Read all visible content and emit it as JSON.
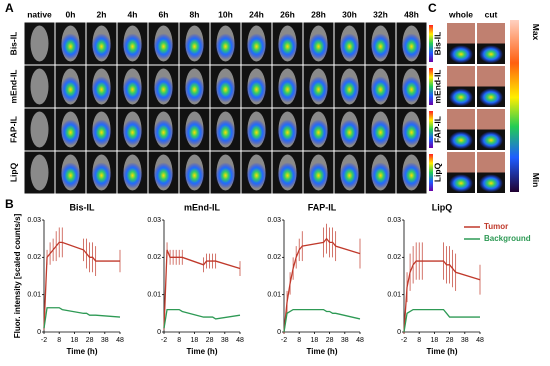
{
  "panel_labels": [
    "A",
    "B",
    "C"
  ],
  "panel_a": {
    "columns": [
      "native",
      "0h",
      "2h",
      "4h",
      "6h",
      "8h",
      "10h",
      "24h",
      "26h",
      "28h",
      "30h",
      "32h",
      "48h"
    ],
    "rows": [
      "Bis-IL",
      "mEnd-IL",
      "FAP-IL",
      "LipQ"
    ]
  },
  "panel_c": {
    "columns": [
      "whole",
      "cut"
    ],
    "rows": [
      "Bis-IL",
      "mEnd-IL",
      "FAP-IL",
      "LipQ"
    ],
    "scale_max": "Max",
    "scale_min": "Min"
  },
  "chart_data": [
    {
      "type": "line",
      "title": "Bis-IL",
      "x_label": "Time (h)",
      "y_label": "Fluor. intensity [scaled counts/s]",
      "x": [
        -2,
        0,
        2,
        4,
        6,
        8,
        10,
        24,
        26,
        28,
        30,
        32,
        48
      ],
      "xlim": [
        -2,
        48
      ],
      "xticks": [
        -2,
        8,
        18,
        28,
        38,
        48
      ],
      "ylim": [
        0,
        0.03
      ],
      "yticks": [
        0,
        0.01,
        0.02,
        0.03
      ],
      "series": [
        {
          "color": "#c0392b",
          "values": [
            0.001,
            0.02,
            0.021,
            0.022,
            0.023,
            0.024,
            0.024,
            0.022,
            0.021,
            0.02,
            0.02,
            0.019,
            0.019
          ],
          "errors": [
            0.0005,
            0.002,
            0.003,
            0.003,
            0.004,
            0.004,
            0.004,
            0.003,
            0.004,
            0.004,
            0.004,
            0.004,
            0.003
          ]
        },
        {
          "color": "#2e9a55",
          "values": [
            0.001,
            0.0065,
            0.0065,
            0.0065,
            0.0065,
            0.0065,
            0.006,
            0.005,
            0.005,
            0.0045,
            0.0045,
            0.0045,
            0.004
          ]
        }
      ]
    },
    {
      "type": "line",
      "title": "mEnd-IL",
      "x_label": "Time (h)",
      "x": [
        -2,
        0,
        2,
        4,
        6,
        8,
        10,
        24,
        26,
        28,
        30,
        32,
        48
      ],
      "xlim": [
        -2,
        48
      ],
      "xticks": [
        -2,
        8,
        18,
        28,
        38,
        48
      ],
      "ylim": [
        0,
        0.03
      ],
      "yticks": [
        0,
        0.01,
        0.02,
        0.03
      ],
      "series": [
        {
          "color": "#c0392b",
          "values": [
            0.001,
            0.022,
            0.02,
            0.02,
            0.02,
            0.02,
            0.02,
            0.018,
            0.019,
            0.019,
            0.019,
            0.019,
            0.017
          ],
          "errors": [
            0.0005,
            0.002,
            0.002,
            0.002,
            0.002,
            0.002,
            0.002,
            0.002,
            0.002,
            0.002,
            0.002,
            0.002,
            0.002
          ]
        },
        {
          "color": "#2e9a55",
          "values": [
            0.001,
            0.006,
            0.006,
            0.006,
            0.006,
            0.006,
            0.0055,
            0.004,
            0.004,
            0.004,
            0.004,
            0.0035,
            0.0045
          ]
        }
      ]
    },
    {
      "type": "line",
      "title": "FAP-IL",
      "x_label": "Time (h)",
      "x": [
        -2,
        0,
        2,
        4,
        6,
        8,
        10,
        24,
        26,
        28,
        30,
        32,
        48
      ],
      "xlim": [
        -2,
        48
      ],
      "xticks": [
        -2,
        8,
        18,
        28,
        38,
        48
      ],
      "ylim": [
        0,
        0.03
      ],
      "yticks": [
        0,
        0.01,
        0.02,
        0.03
      ],
      "series": [
        {
          "color": "#c0392b",
          "values": [
            0,
            0.008,
            0.013,
            0.017,
            0.02,
            0.022,
            0.023,
            0.024,
            0.025,
            0.024,
            0.024,
            0.023,
            0.021
          ],
          "errors": [
            0.0005,
            0.003,
            0.003,
            0.003,
            0.003,
            0.003,
            0.004,
            0.004,
            0.004,
            0.004,
            0.004,
            0.004,
            0.004
          ]
        },
        {
          "color": "#2e9a55",
          "values": [
            0,
            0.005,
            0.0055,
            0.006,
            0.006,
            0.006,
            0.006,
            0.006,
            0.0055,
            0.0055,
            0.005,
            0.005,
            0.0035
          ]
        }
      ]
    },
    {
      "type": "line",
      "title": "LipQ",
      "x_label": "Time (h)",
      "x": [
        -2,
        0,
        2,
        4,
        6,
        8,
        10,
        24,
        26,
        28,
        30,
        32,
        48
      ],
      "xlim": [
        -2,
        48
      ],
      "xticks": [
        -2,
        8,
        18,
        28,
        38,
        48
      ],
      "ylim": [
        0,
        0.03
      ],
      "yticks": [
        0,
        0.01,
        0.02,
        0.03
      ],
      "series": [
        {
          "name": "Tumor",
          "color": "#c0392b",
          "values": [
            0,
            0.012,
            0.016,
            0.018,
            0.019,
            0.019,
            0.019,
            0.019,
            0.018,
            0.018,
            0.017,
            0.016,
            0.014
          ],
          "errors": [
            0.0005,
            0.004,
            0.005,
            0.005,
            0.005,
            0.005,
            0.005,
            0.005,
            0.005,
            0.005,
            0.005,
            0.005,
            0.004
          ]
        },
        {
          "name": "Background",
          "color": "#2e9a55",
          "values": [
            0,
            0.005,
            0.0055,
            0.006,
            0.006,
            0.006,
            0.006,
            0.006,
            0.005,
            0.004,
            0.004,
            0.004,
            0.004
          ]
        }
      ]
    }
  ]
}
